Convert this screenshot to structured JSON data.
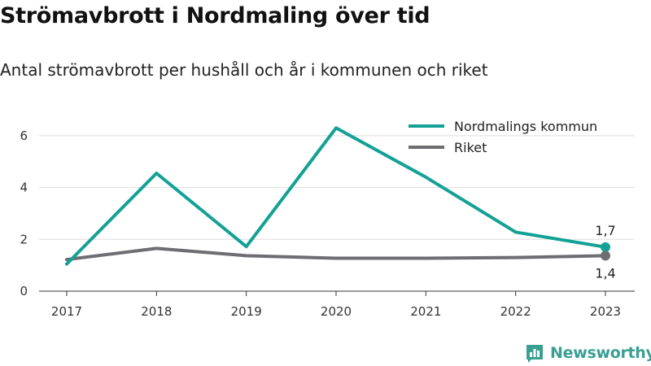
{
  "title": "Strömavbrott i Nordmaling över tid",
  "subtitle": "Antal strömavbrott per hushåll och år i kommunen och riket",
  "brand": {
    "name": "Newsworthy",
    "icon": "newsworthy-logo-icon"
  },
  "chart_data": {
    "type": "line",
    "title": "Strömavbrott i Nordmaling över tid",
    "subtitle": "Antal strömavbrott per hushåll och år i kommunen och riket",
    "xlabel": "",
    "ylabel": "",
    "x": [
      "2017",
      "2018",
      "2019",
      "2020",
      "2021",
      "2022",
      "2023"
    ],
    "ylim": [
      0,
      7
    ],
    "yticks": [
      "0",
      "2",
      "4",
      "6"
    ],
    "grid": true,
    "legend": "top-right",
    "series": [
      {
        "name": "Nordmalings kommun",
        "color": "#13a196",
        "values": [
          1.05,
          4.55,
          1.72,
          6.3,
          4.4,
          2.28,
          1.7
        ]
      },
      {
        "name": "Riket",
        "color": "#6d6d72",
        "values": [
          1.22,
          1.65,
          1.37,
          1.27,
          1.27,
          1.3,
          1.37
        ]
      }
    ],
    "annotations": [
      {
        "series": 0,
        "x": "2023",
        "text": "1,7",
        "position": "above"
      },
      {
        "series": 1,
        "x": "2023",
        "text": "1,4",
        "position": "below"
      }
    ]
  }
}
